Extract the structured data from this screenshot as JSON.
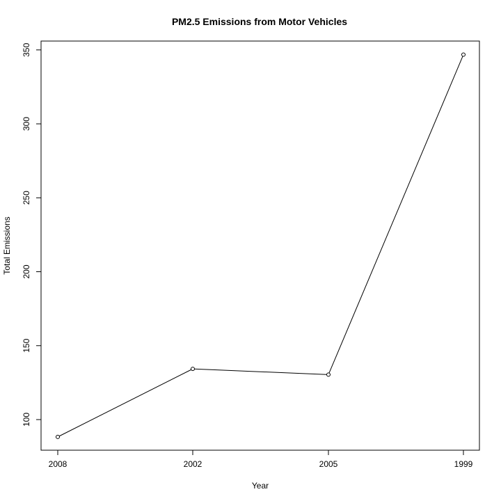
{
  "chart_data": {
    "type": "line",
    "title": "PM2.5 Emissions from Motor Vehicles",
    "xlabel": "Year",
    "ylabel": "Total Emissions",
    "categories": [
      "2008",
      "2002",
      "2005",
      "1999"
    ],
    "values": [
      88.3,
      134.3,
      130.4,
      346.8
    ],
    "yticks": [
      "100",
      "150",
      "200",
      "250",
      "300",
      "350"
    ],
    "ylim": [
      79.3,
      356.0
    ],
    "marker": "open-circle",
    "line_color": "#000000",
    "grid": false,
    "legend": "none"
  }
}
